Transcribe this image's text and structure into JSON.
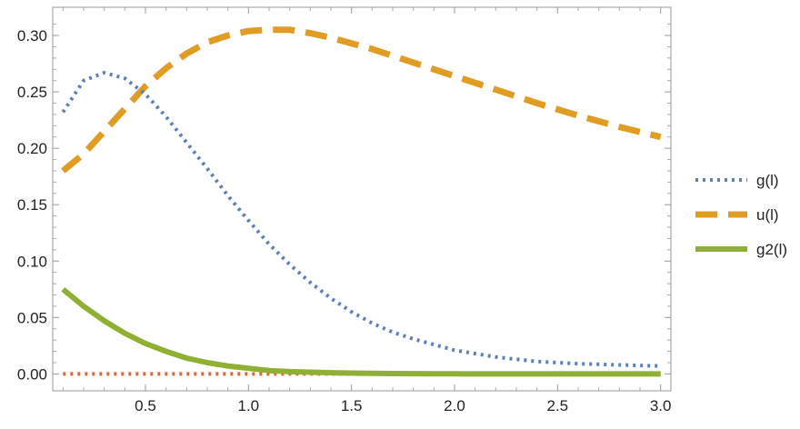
{
  "chart_data": {
    "type": "line",
    "title": "",
    "xlabel": "",
    "ylabel": "",
    "xlim": [
      0.05,
      3.05
    ],
    "ylim": [
      -0.015,
      0.325
    ],
    "xticks": [
      0.5,
      1.0,
      1.5,
      2.0,
      2.5,
      3.0
    ],
    "xtick_labels": [
      "0.5",
      "1.0",
      "1.5",
      "2.0",
      "2.5",
      "3.0"
    ],
    "yticks": [
      0.0,
      0.05,
      0.1,
      0.15,
      0.2,
      0.25,
      0.3
    ],
    "ytick_labels": [
      "0.00",
      "0.05",
      "0.10",
      "0.15",
      "0.20",
      "0.25",
      "0.30"
    ],
    "grid": false,
    "frame": true,
    "legend_position": "right",
    "series": [
      {
        "name": "g(l)",
        "color": "#5e81b5",
        "style": "dotted",
        "x": [
          0.1,
          0.2,
          0.3,
          0.4,
          0.5,
          0.6,
          0.7,
          0.8,
          0.9,
          1.0,
          1.1,
          1.2,
          1.3,
          1.4,
          1.5,
          1.6,
          1.7,
          1.8,
          1.9,
          2.0,
          2.2,
          2.4,
          2.6,
          2.8,
          3.0
        ],
        "y": [
          0.232,
          0.26,
          0.267,
          0.262,
          0.248,
          0.228,
          0.205,
          0.182,
          0.158,
          0.136,
          0.115,
          0.097,
          0.081,
          0.067,
          0.055,
          0.045,
          0.037,
          0.031,
          0.026,
          0.021,
          0.015,
          0.011,
          0.009,
          0.008,
          0.007
        ]
      },
      {
        "name": "u(l)",
        "color": "#e19c24",
        "style": "dashed",
        "x": [
          0.1,
          0.2,
          0.3,
          0.4,
          0.5,
          0.6,
          0.7,
          0.8,
          0.9,
          1.0,
          1.1,
          1.2,
          1.3,
          1.4,
          1.5,
          1.6,
          1.7,
          1.8,
          1.9,
          2.0,
          2.2,
          2.4,
          2.6,
          2.8,
          3.0
        ],
        "y": [
          0.18,
          0.195,
          0.215,
          0.235,
          0.255,
          0.271,
          0.284,
          0.294,
          0.3,
          0.304,
          0.305,
          0.305,
          0.302,
          0.298,
          0.293,
          0.288,
          0.282,
          0.276,
          0.27,
          0.264,
          0.252,
          0.24,
          0.229,
          0.219,
          0.21
        ]
      },
      {
        "name": "g2(l)",
        "color": "#8fb032",
        "style": "solid",
        "x": [
          0.1,
          0.2,
          0.3,
          0.4,
          0.5,
          0.6,
          0.7,
          0.8,
          0.9,
          1.0,
          1.1,
          1.2,
          1.3,
          1.4,
          1.5,
          1.6,
          1.7,
          1.8,
          1.9,
          2.0,
          2.2,
          2.4,
          2.6,
          2.8,
          3.0
        ],
        "y": [
          0.075,
          0.06,
          0.047,
          0.036,
          0.027,
          0.02,
          0.014,
          0.01,
          0.007,
          0.005,
          0.003,
          0.002,
          0.0015,
          0.001,
          0.0007,
          0.0005,
          0.0003,
          0.0002,
          0.0001,
          0.0001,
          0.0,
          0.0,
          0.0,
          0.0,
          0.0
        ]
      },
      {
        "name": "",
        "color": "#eb6235",
        "style": "dotted",
        "x": [
          0.1,
          3.0
        ],
        "y": [
          0.0,
          0.0
        ]
      }
    ]
  }
}
